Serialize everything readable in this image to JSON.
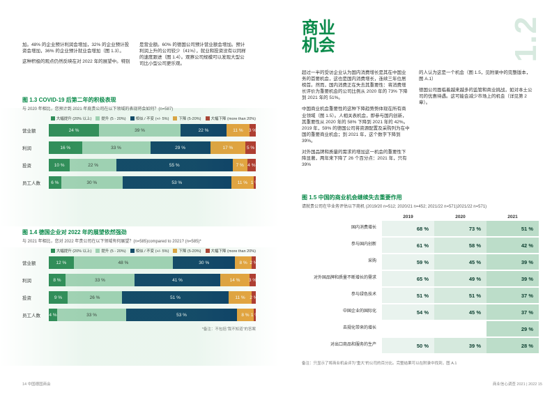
{
  "colors": {
    "brand_green": "#0a8a4a",
    "seg_green_dark": "#2e8b57",
    "seg_green_light": "#a8d5ba",
    "seg_navy": "#0b3d66",
    "seg_orange": "#e8a33d",
    "seg_red": "#b23a2f",
    "table_cell_bg": [
      "#e9f3ee",
      "#d5e9dd",
      "#bcddc9"
    ],
    "table_cell_text": "#0b3d2e",
    "section_num_color": "#d7e9df"
  },
  "left_intro": {
    "p1": "加。48% 的企业预计利润会增加，32% 的企业预计投资会增加，36% 的企业预计就业会增加（图 1.3）。",
    "p2": "这种积极的观点仍然反映在对 2022 年的展望中。特别",
    "p3": "是营业额。60% 的德国公司预计营业额会增加。预计利润上升的公司较少（41%），就业和投资没有以同样的速度跟进（图 1.4）。观察公司规模可以发现大型公司比小型公司更乐观。"
  },
  "chart13": {
    "title": "图 1.3 COVID-19 后第二年的积极表现",
    "subtitle": "与 2020 年相比，您预计到 2021 年底贵公司在以下领域的表现将会如何？(n=587)",
    "legend": [
      {
        "label": "大幅提升 (20% 以上)",
        "color": "#2e8b57"
      },
      {
        "label": "提升 (5 - 20%)",
        "color": "#a8d5ba"
      },
      {
        "label": "相似 / 不变 (+/- 5%)",
        "color": "#0b3d66"
      },
      {
        "label": "下降 (5-20%)",
        "color": "#e8a33d"
      },
      {
        "label": "大幅下降 (more than 20%)",
        "color": "#b23a2f"
      }
    ],
    "rows": [
      {
        "label": "营业额",
        "segs": [
          {
            "v": 24,
            "c": "#2e8b57"
          },
          {
            "v": 39,
            "c": "#a8d5ba",
            "dark": true
          },
          {
            "v": 22,
            "c": "#0b3d66"
          },
          {
            "v": 11,
            "c": "#e8a33d"
          },
          {
            "v": 3,
            "c": "#b23a2f"
          }
        ]
      },
      {
        "label": "利润",
        "segs": [
          {
            "v": 16,
            "c": "#2e8b57"
          },
          {
            "v": 33,
            "c": "#a8d5ba",
            "dark": true
          },
          {
            "v": 29,
            "c": "#0b3d66"
          },
          {
            "v": 17,
            "c": "#e8a33d"
          },
          {
            "v": 5,
            "c": "#b23a2f"
          }
        ]
      },
      {
        "label": "投资",
        "segs": [
          {
            "v": 10,
            "c": "#2e8b57"
          },
          {
            "v": 22,
            "c": "#a8d5ba",
            "dark": true
          },
          {
            "v": 55,
            "c": "#0b3d66"
          },
          {
            "v": 7,
            "c": "#e8a33d"
          },
          {
            "v": 4,
            "c": "#b23a2f"
          }
        ]
      },
      {
        "label": "员工人数",
        "segs": [
          {
            "v": 6,
            "c": "#2e8b57"
          },
          {
            "v": 30,
            "c": "#a8d5ba",
            "dark": true
          },
          {
            "v": 53,
            "c": "#0b3d66"
          },
          {
            "v": 11,
            "c": "#e8a33d"
          },
          {
            "v": 1,
            "c": "#b23a2f"
          }
        ]
      }
    ]
  },
  "chart14": {
    "title": "图 1.4 德国企业对 2022 年的展望依然强劲",
    "subtitle": "与 2021 年相比，您对 2022 年贵公司在以下领域有何展望？(n=585)compared to 2021? (n=585)*",
    "legend": [
      {
        "label": "大幅提升 (20% 以上)",
        "color": "#2e8b57"
      },
      {
        "label": "提升 (5 - 20%)",
        "color": "#a8d5ba"
      },
      {
        "label": "相似 / 不变 (+/- 5%)",
        "color": "#0b3d66"
      },
      {
        "label": "下降 (5-20%)",
        "color": "#e8a33d"
      },
      {
        "label": "大幅下降 (more than 20%)",
        "color": "#b23a2f"
      }
    ],
    "rows": [
      {
        "label": "营业额",
        "segs": [
          {
            "v": 12,
            "c": "#2e8b57"
          },
          {
            "v": 48,
            "c": "#a8d5ba",
            "dark": true
          },
          {
            "v": 30,
            "c": "#0b3d66"
          },
          {
            "v": 8,
            "c": "#e8a33d"
          },
          {
            "v": 2,
            "c": "#b23a2f"
          }
        ]
      },
      {
        "label": "利润",
        "segs": [
          {
            "v": 8,
            "c": "#2e8b57"
          },
          {
            "v": 33,
            "c": "#a8d5ba",
            "dark": true
          },
          {
            "v": 41,
            "c": "#0b3d66"
          },
          {
            "v": 14,
            "c": "#e8a33d"
          },
          {
            "v": 3,
            "c": "#b23a2f"
          }
        ]
      },
      {
        "label": "投资",
        "segs": [
          {
            "v": 9,
            "c": "#2e8b57"
          },
          {
            "v": 26,
            "c": "#a8d5ba",
            "dark": true
          },
          {
            "v": 51,
            "c": "#0b3d66"
          },
          {
            "v": 11,
            "c": "#e8a33d"
          },
          {
            "v": 2,
            "c": "#b23a2f"
          }
        ]
      },
      {
        "label": "员工人数",
        "segs": [
          {
            "v": 4,
            "c": "#2e8b57"
          },
          {
            "v": 33,
            "c": "#a8d5ba",
            "dark": true
          },
          {
            "v": 53,
            "c": "#0b3d66"
          },
          {
            "v": 8,
            "c": "#e8a33d"
          },
          {
            "v": 1,
            "c": "#b23a2f"
          }
        ]
      }
    ],
    "footnote": "*备注：不包括“我不知道”的答案"
  },
  "right": {
    "headline_l1": "商业",
    "headline_l2": "机会",
    "section_num": "1.2",
    "col1_p1": "超过一半的受访企业认为国内消费增长是其在中国业务的首要机会，这也是国内消费增长，连续三年位居榜首。然而，国内消费正在失去其重要性：将消费增长评价为重要机会的公司比例从 2020 年的 73% 下降到 2021 年的 51%。",
    "col1_p2": "中国商业机会重要性的这种下降趋势势体现在所有商业领域（图 1.5）。人相关表机会，即参与国内创新，其重要性从 2020 年的 58% 下降到 2021 年的 42%。2019 年，59% 的德国公司将资源配置及采购列为在中国的重要商业机会；到 2021 年，这个数字下降到 39%。",
    "col1_p3": "对外国品牌和质量的需求的增加这一机会的重要性下降显著，两年来下降了 26 个百分点：2021 年，只有 39%",
    "col2_p1": "的人认为这是一个机会（图 1.5，见附录中的完整版本，图 A.1）",
    "col2_p2": "德国公司面临着越来越多的监管和商业挑战，如对本土公司的优惠待遇。这可能会减少市场上的机会（详见第 2 章）。"
  },
  "table15": {
    "title": "图 1.5 中国的商业机会继续失去重要作用",
    "subtitle": "请就贵公司在华业务评估以下商机 (2019/20 n=512; 2020/21 n=452; 2021/22 n=571)2021/22 n=571)",
    "years": [
      "2019",
      "2020",
      "2021"
    ],
    "rows": [
      {
        "label": "国内消费增长",
        "vals": [
          "68 %",
          "73 %",
          "51 %"
        ]
      },
      {
        "label": "参与国内创新",
        "vals": [
          "61 %",
          "58 %",
          "42 %"
        ]
      },
      {
        "label": "采购",
        "vals": [
          "59 %",
          "45 %",
          "39 %"
        ]
      },
      {
        "label": "对外国品牌和质量不断增长的需求",
        "vals": [
          "65 %",
          "49 %",
          "39 %"
        ]
      },
      {
        "label": "参与绿色技术",
        "vals": [
          "51 %",
          "51 %",
          "37 %"
        ]
      },
      {
        "label": "中国企业的国际化",
        "vals": [
          "54 %",
          "45 %",
          "37 %"
        ]
      },
      {
        "label": "去规化带来的增长",
        "vals": [
          "",
          "",
          "29 %"
        ]
      },
      {
        "label": "对出口商品和服务的生产",
        "vals": [
          "50 %",
          "39 %",
          "28 %"
        ]
      }
    ],
    "footnote": "备注：只显示了将商业机会评为“重大”的公司的百分比。完整结果可以在附录中找到，图 A.1"
  },
  "footer": {
    "left": "14    中国德国商会",
    "right": "商业信心调查 2021 | 2022    15"
  }
}
